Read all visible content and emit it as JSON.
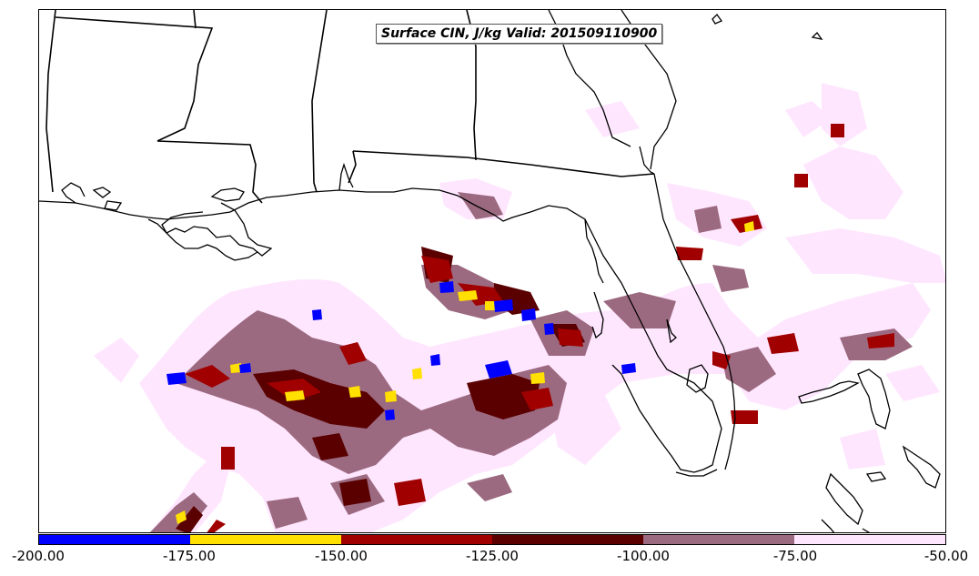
{
  "title": "Surface CIN, J/kg Valid: 201509110900",
  "colorbar": {
    "labels": [
      "-200.00",
      "-175.00",
      "-150.00",
      "-125.00",
      "-100.00",
      "-75.00",
      "-50.00"
    ],
    "colors": [
      "#0000ff",
      "#ffe000",
      "#a00000",
      "#5a0000",
      "#9c6a80",
      "#ffe6ff"
    ]
  },
  "palette": {
    "coastline": "#000000",
    "light_pink": "#ffe6ff",
    "mauve": "#9c6a80",
    "dark_red": "#5a0000",
    "red": "#a00000",
    "yellow": "#ffe000",
    "blue": "#0000ff"
  }
}
